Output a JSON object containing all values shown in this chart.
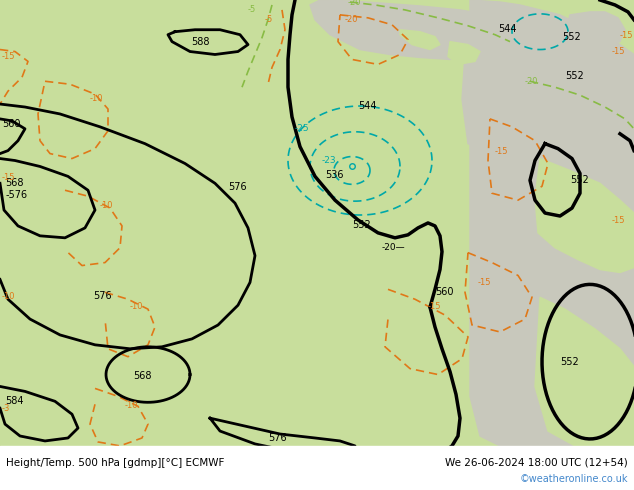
{
  "title_left": "Height/Temp. 500 hPa [gdmp][°C] ECMWF",
  "title_right": "We 26-06-2024 18:00 UTC (12+54)",
  "credit": "©weatheronline.co.uk",
  "fig_width": 6.34,
  "fig_height": 4.9,
  "bg_green": "#c8de9c",
  "bg_gray": "#c8c8bc",
  "black_lw": 2.0,
  "orange_color": "#e07818",
  "green_dash_color": "#88bb44",
  "cyan_color": "#00a8a8"
}
